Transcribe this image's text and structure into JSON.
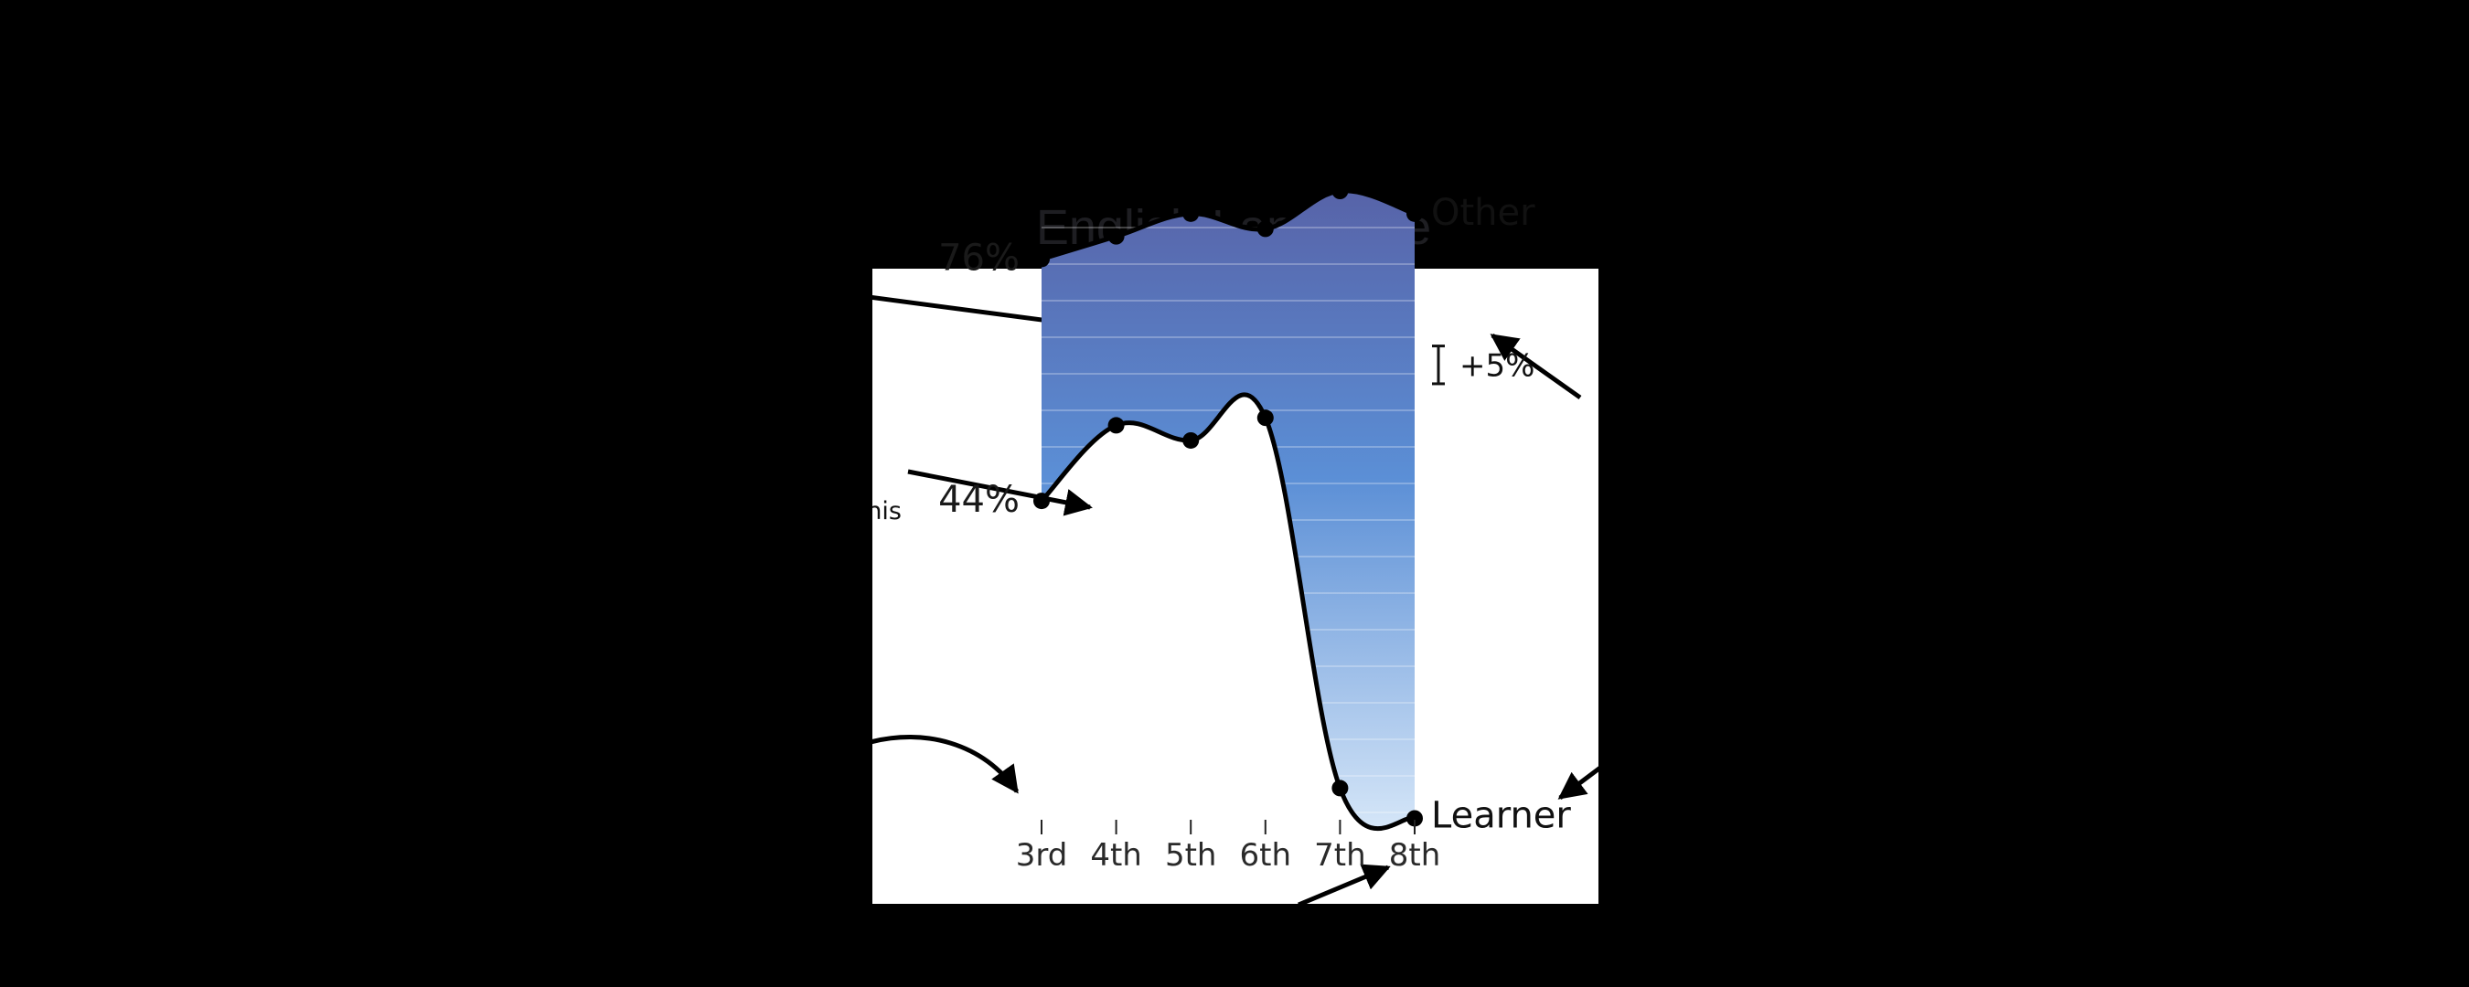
{
  "chart_data": {
    "type": "line",
    "title": "English Language",
    "categories": [
      "3rd",
      "4th",
      "5th",
      "6th",
      "7th",
      "8th"
    ],
    "series": [
      {
        "name": "Other",
        "values": [
          76,
          79,
          82,
          80,
          85,
          82
        ]
      },
      {
        "name": "Learner",
        "values": [
          44,
          54,
          52,
          55,
          6,
          2
        ]
      }
    ],
    "start_labels": [
      "76%",
      "44%"
    ],
    "scale_label": "+5%",
    "annotation_fragment": "his"
  }
}
